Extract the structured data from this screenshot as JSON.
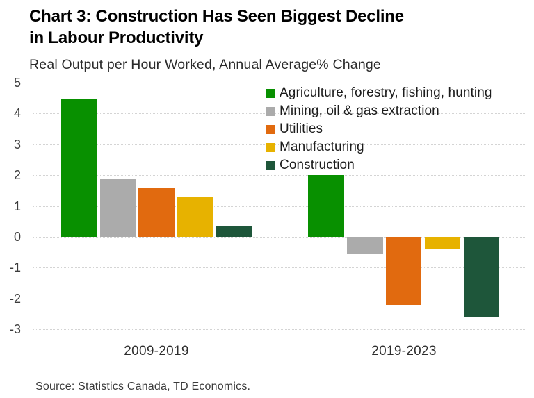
{
  "header": {
    "title_line1": "Chart 3: Construction Has Seen Biggest Decline",
    "title_line2": "in Labour Productivity",
    "subtitle": "Real Output per Hour Worked, Annual Average% Change"
  },
  "chart_data": {
    "type": "bar",
    "title": "Chart 3: Construction Has Seen Biggest Decline in Labour Productivity",
    "subtitle": "Real Output per Hour Worked, Annual Average% Change",
    "categories": [
      "2009-2019",
      "2019-2023"
    ],
    "series": [
      {
        "name": "Agriculture, forestry, fishing, hunting",
        "color": "#089000",
        "values": [
          4.45,
          2.0
        ]
      },
      {
        "name": "Mining, oil & gas extraction",
        "color": "#ABABAB",
        "values": [
          1.9,
          -0.55
        ]
      },
      {
        "name": "Utilities",
        "color": "#E16A0F",
        "values": [
          1.6,
          -2.2
        ]
      },
      {
        "name": "Manufacturing",
        "color": "#E7B200",
        "values": [
          1.3,
          -0.4
        ]
      },
      {
        "name": "Construction",
        "color": "#1E563A",
        "values": [
          0.35,
          -2.6
        ]
      }
    ],
    "ylim": [
      -3,
      5
    ],
    "yticks": [
      5,
      4,
      3,
      2,
      1,
      0,
      -1,
      -2,
      -3
    ],
    "grid": true,
    "gridline_color": "#d4d4d4",
    "legend_position": "top-right",
    "xlabel": "",
    "ylabel": ""
  },
  "footer": {
    "source": "Source: Statistics Canada, TD Economics."
  }
}
